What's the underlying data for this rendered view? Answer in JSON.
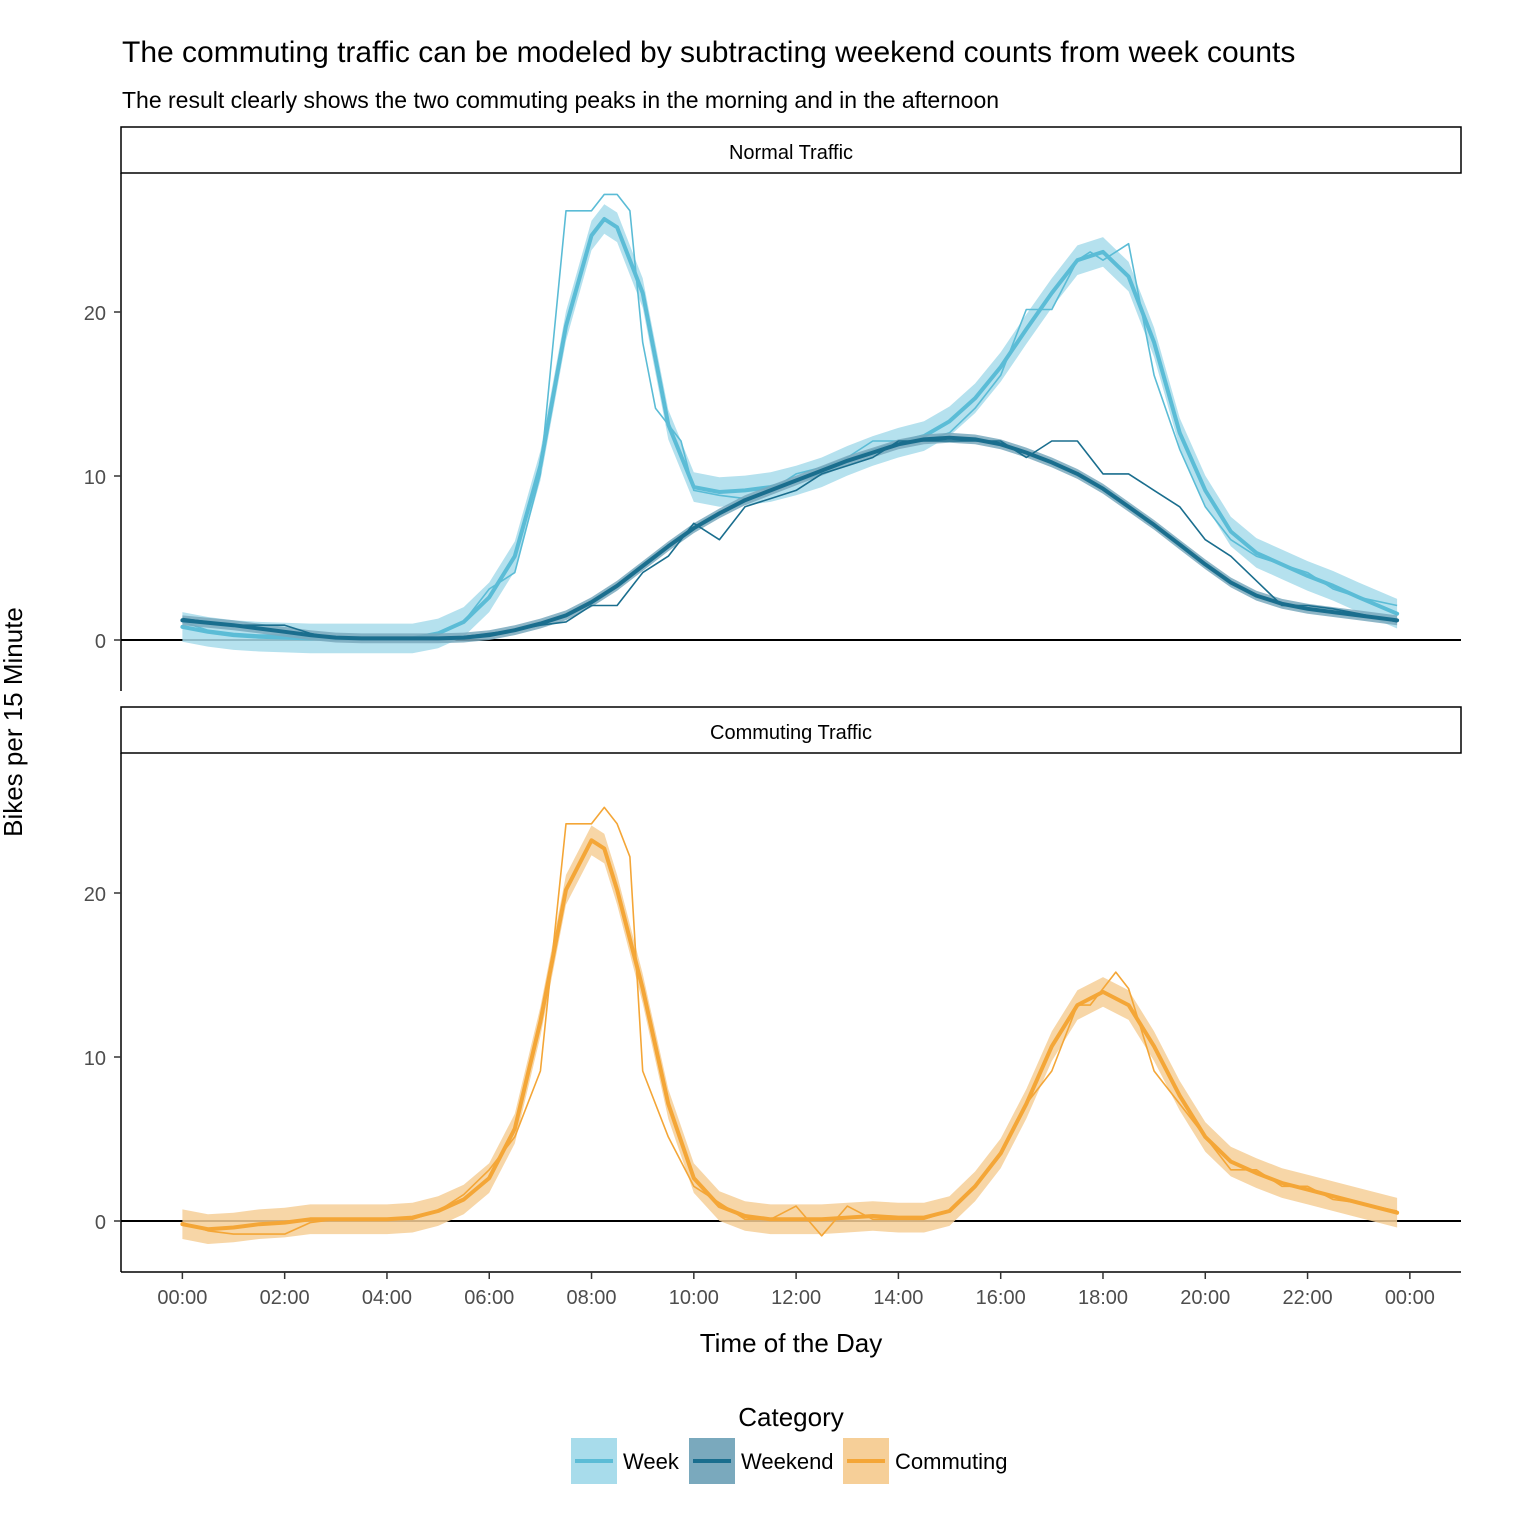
{
  "chart_data": {
    "type": "line",
    "title": "The commuting traffic can be modeled by subtracting weekend counts from week counts",
    "subtitle": "The result clearly shows the two commuting peaks in the morning and in the afternoon",
    "xlabel": "Time of the Day",
    "ylabel": "Bikes per 15 Minute",
    "x_ticks": [
      "00:00",
      "02:00",
      "04:00",
      "06:00",
      "08:00",
      "10:00",
      "12:00",
      "14:00",
      "16:00",
      "18:00",
      "20:00",
      "22:00",
      "00:00"
    ],
    "xlim_hours": [
      -1.2,
      25.0
    ],
    "y_ticks": [
      0,
      10,
      20
    ],
    "grid": false,
    "legend": {
      "title": "Category",
      "position": "bottom",
      "entries": [
        "Week",
        "Weekend",
        "Commuting"
      ]
    },
    "colors": {
      "Week": "#5bbcd6",
      "Weekend": "#1a6e8e",
      "Commuting": "#f4a637",
      "Week_band": "#a8dceb",
      "Weekend_band": "#7aa9bd",
      "Commuting_band": "#f6cf98"
    },
    "panels": [
      {
        "strip": "Normal Traffic",
        "ylim": [
          -3.2,
          28.3
        ],
        "series": [
          {
            "name": "Week",
            "raw_hours": [
              0,
              0.5,
              1,
              1.5,
              2,
              2.5,
              3,
              3.5,
              4,
              4.5,
              5,
              5.5,
              6,
              6.5,
              7,
              7.5,
              7.75,
              8,
              8.25,
              8.5,
              8.75,
              9,
              9.25,
              9.5,
              9.75,
              10,
              10.5,
              11,
              11.5,
              12,
              12.5,
              13,
              13.5,
              14,
              14.5,
              15,
              15.5,
              16,
              16.5,
              17,
              17.5,
              17.75,
              18,
              18.25,
              18.5,
              19,
              19.5,
              20,
              20.5,
              21,
              21.5,
              22,
              22.5,
              23,
              23.75
            ],
            "raw": [
              1,
              0.5,
              0.3,
              0.2,
              0.2,
              0.1,
              0,
              0,
              0,
              0,
              0.3,
              1,
              3,
              4,
              10,
              26,
              26,
              26,
              27,
              27,
              26,
              18,
              14,
              13,
              12,
              9,
              8.7,
              8.5,
              9,
              10,
              10.4,
              11,
              12,
              12,
              12,
              12.5,
              14,
              16,
              20,
              20,
              23,
              23.5,
              23,
              23.5,
              24,
              16,
              11.5,
              8,
              6,
              5,
              4.5,
              4,
              3,
              2.5,
              2
            ],
            "smooth_hours": [
              0,
              0.5,
              1,
              1.5,
              2,
              2.5,
              3,
              3.5,
              4,
              4.5,
              5,
              5.5,
              6,
              6.5,
              7,
              7.5,
              8,
              8.25,
              8.5,
              9,
              9.5,
              10,
              10.5,
              11,
              11.5,
              12,
              12.5,
              13,
              13.5,
              14,
              14.5,
              15,
              15.5,
              16,
              16.5,
              17,
              17.5,
              18,
              18.5,
              19,
              19.5,
              20,
              20.5,
              21,
              21.5,
              22,
              22.5,
              23,
              23.75
            ],
            "smooth": [
              0.7,
              0.4,
              0.2,
              0.1,
              0.05,
              0,
              0,
              0,
              0,
              0,
              0.3,
              1,
              2.5,
              5,
              10.5,
              19,
              24.5,
              25.5,
              25,
              21,
              13,
              9.2,
              8.9,
              9,
              9.2,
              9.6,
              10.1,
              10.8,
              11.4,
              11.9,
              12.3,
              13.2,
              14.6,
              16.5,
              18.8,
              21,
              23,
              23.5,
              22,
              18,
              12.5,
              9,
              6.5,
              5.2,
              4.5,
              3.8,
              3.2,
              2.5,
              1.5
            ],
            "band_halfwidth": 0.9
          },
          {
            "name": "Weekend",
            "raw_hours": [
              0,
              0.5,
              1,
              1.5,
              2,
              2.5,
              3,
              3.5,
              4,
              4.5,
              5,
              5.5,
              6,
              6.5,
              7,
              7.5,
              8,
              8.5,
              9,
              9.5,
              10,
              10.5,
              11,
              11.5,
              12,
              12.5,
              13,
              13.5,
              14,
              14.5,
              15,
              15.5,
              16,
              16.5,
              17,
              17.5,
              18,
              18.5,
              19,
              19.5,
              20,
              20.5,
              21,
              21.5,
              22,
              22.5,
              23,
              23.75
            ],
            "raw": [
              1.2,
              1,
              0.8,
              0.8,
              0.8,
              0.3,
              0,
              0,
              0,
              0,
              0,
              0.1,
              0.3,
              0.5,
              0.8,
              1,
              2,
              2,
              4,
              5,
              7,
              6,
              8,
              8.5,
              9,
              10,
              10.5,
              11,
              12,
              12,
              12,
              12,
              12,
              11,
              12,
              12,
              10,
              10,
              9,
              8,
              6,
              5,
              3.5,
              2,
              2,
              1.8,
              1.5,
              1
            ],
            "smooth_hours": [
              0,
              0.5,
              1,
              1.5,
              2,
              2.5,
              3,
              3.5,
              4,
              4.5,
              5,
              5.5,
              6,
              6.5,
              7,
              7.5,
              8,
              8.5,
              9,
              9.5,
              10,
              10.5,
              11,
              11.5,
              12,
              12.5,
              13,
              13.5,
              14,
              14.5,
              15,
              15.5,
              16,
              16.5,
              17,
              17.5,
              18,
              18.5,
              19,
              19.5,
              20,
              20.5,
              21,
              21.5,
              22,
              22.5,
              23,
              23.75
            ],
            "smooth": [
              1.1,
              0.95,
              0.8,
              0.6,
              0.4,
              0.2,
              0.05,
              0,
              0,
              0,
              0,
              0.05,
              0.2,
              0.5,
              0.9,
              1.4,
              2.2,
              3.2,
              4.4,
              5.6,
              6.7,
              7.6,
              8.4,
              9,
              9.6,
              10.2,
              10.8,
              11.3,
              11.8,
              12.1,
              12.2,
              12.1,
              11.8,
              11.3,
              10.7,
              10,
              9.1,
              8,
              6.9,
              5.7,
              4.5,
              3.4,
              2.6,
              2.1,
              1.8,
              1.6,
              1.4,
              1.1
            ],
            "band_halfwidth": 0.3
          }
        ]
      },
      {
        "strip": "Commuting Traffic",
        "ylim": [
          -3.2,
          28.3
        ],
        "series": [
          {
            "name": "Commuting",
            "raw_hours": [
              0,
              0.5,
              1,
              1.5,
              2,
              2.5,
              3,
              3.5,
              4,
              4.5,
              5,
              5.5,
              6,
              6.5,
              7,
              7.5,
              7.75,
              8,
              8.25,
              8.5,
              8.75,
              9,
              9.5,
              10,
              10.5,
              11,
              11.5,
              12,
              12.5,
              13,
              13.5,
              14,
              14.5,
              15,
              15.5,
              16,
              16.5,
              17,
              17.5,
              17.75,
              18,
              18.25,
              18.5,
              19,
              19.5,
              20,
              20.5,
              21,
              21.5,
              22,
              22.5,
              23,
              23.75
            ],
            "raw": [
              -0.2,
              -0.7,
              -0.9,
              -0.9,
              -0.9,
              -0.2,
              0,
              0,
              0,
              0,
              0.5,
              1.5,
              3,
              5,
              9,
              24,
              24,
              24,
              25,
              24,
              22,
              9,
              5,
              2,
              1,
              0,
              0,
              0.8,
              -1,
              0.8,
              0,
              0,
              0,
              0.5,
              2,
              4,
              7,
              9,
              13,
              13,
              14,
              15,
              14,
              9,
              7,
              5,
              3,
              3,
              2,
              2,
              1.2,
              1,
              0.5
            ],
            "smooth_hours": [
              0,
              0.5,
              1,
              1.5,
              2,
              2.5,
              3,
              3.5,
              4,
              4.5,
              5,
              5.5,
              6,
              6.5,
              7,
              7.5,
              8,
              8.25,
              8.5,
              9,
              9.5,
              10,
              10.5,
              11,
              11.5,
              12,
              12.5,
              13,
              13.5,
              14,
              14.5,
              15,
              15.5,
              16,
              16.5,
              17,
              17.5,
              18,
              18.5,
              19,
              19.5,
              20,
              20.5,
              21,
              21.5,
              22,
              22.5,
              23,
              23.75
            ],
            "smooth": [
              -0.3,
              -0.6,
              -0.5,
              -0.3,
              -0.2,
              0,
              0,
              0,
              0,
              0.1,
              0.5,
              1.2,
              2.5,
              5.5,
              12,
              20,
              23,
              22.5,
              20,
              14,
              7,
              2.5,
              0.8,
              0.2,
              0,
              0,
              0,
              0.1,
              0.2,
              0.1,
              0.1,
              0.5,
              2,
              4,
              7,
              10.5,
              13,
              13.8,
              13,
              10.5,
              7.5,
              5,
              3.5,
              2.8,
              2.2,
              1.8,
              1.4,
              1,
              0.4
            ],
            "band_halfwidth": 0.9
          }
        ]
      }
    ]
  }
}
